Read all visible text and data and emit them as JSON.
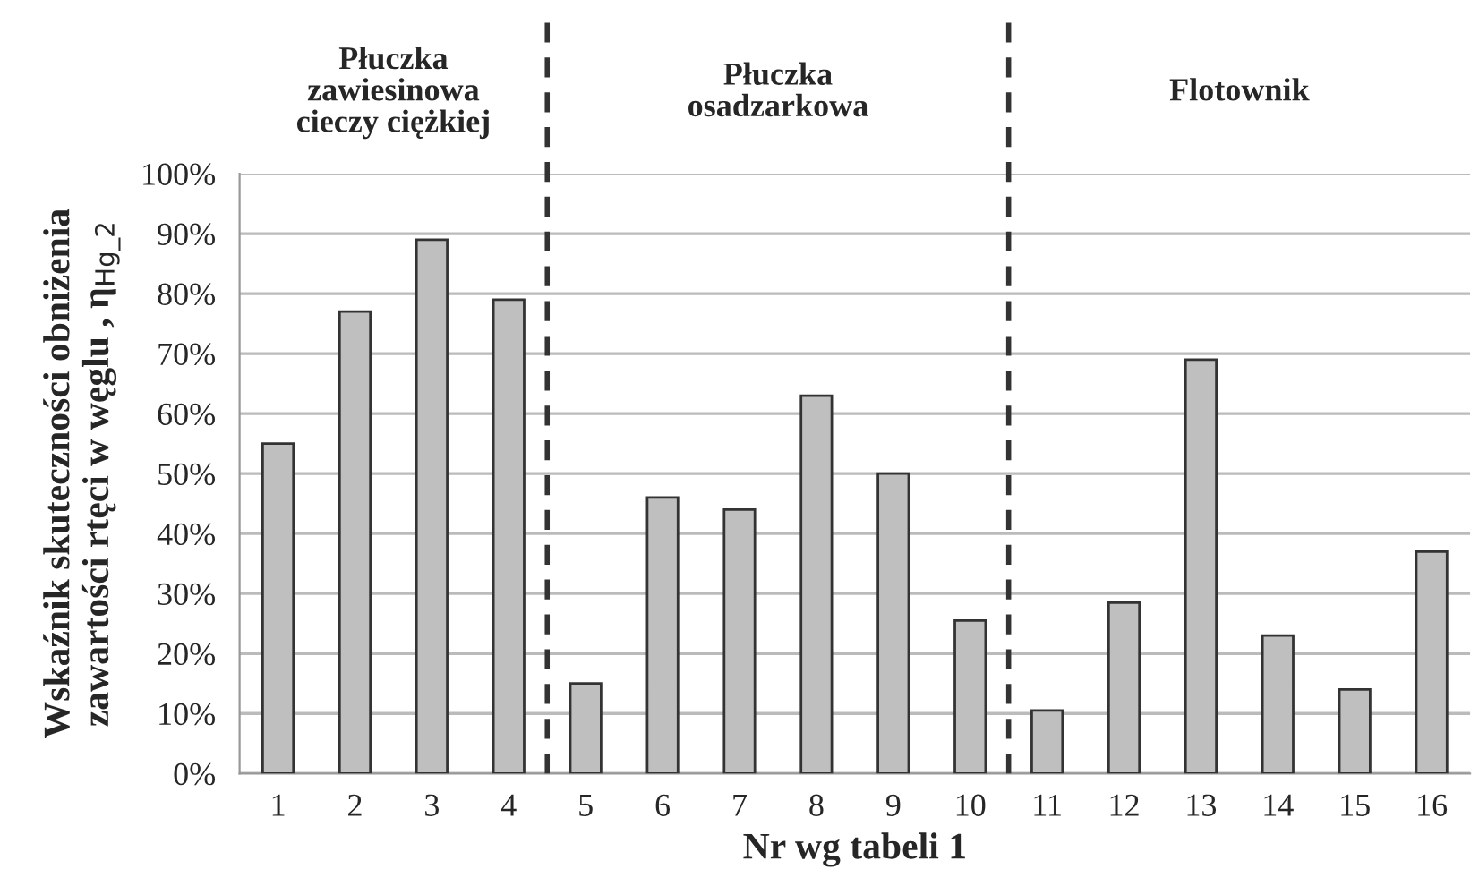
{
  "chart_data": {
    "type": "bar",
    "xlabel": "Nr wg tabeli 1",
    "ylabel": "Wskaźnik skuteczności obniżenia\nzawartości rtęci w węglu , η$_{Hg_2}$",
    "categories": [
      "1",
      "2",
      "3",
      "4",
      "5",
      "6",
      "7",
      "8",
      "9",
      "10",
      "11",
      "12",
      "13",
      "14",
      "15",
      "16"
    ],
    "values": [
      55,
      77,
      89,
      79,
      15,
      46,
      44,
      63,
      50,
      25.5,
      10.5,
      28.5,
      69,
      23,
      14,
      37
    ],
    "color": "#bfbfbf",
    "ylim": [
      0,
      100
    ],
    "yticks": [
      {
        "value": 0,
        "label": "0%"
      },
      {
        "value": 10,
        "label": "10%"
      },
      {
        "value": 20,
        "label": "20%"
      },
      {
        "value": 30,
        "label": "30%"
      },
      {
        "value": 40,
        "label": "40%"
      },
      {
        "value": 50,
        "label": "50%"
      },
      {
        "value": 60,
        "label": "60%"
      },
      {
        "value": 70,
        "label": "70%"
      },
      {
        "value": 80,
        "label": "80%"
      },
      {
        "value": 90,
        "label": "90%"
      },
      {
        "value": 100,
        "label": "100%"
      }
    ],
    "grid": "y",
    "annotations": [
      "Płuczka\nzawiesinowa\ncieczy ciężkiej",
      "Płuczka\nosadzarkowa",
      "Flotownik"
    ]
  }
}
